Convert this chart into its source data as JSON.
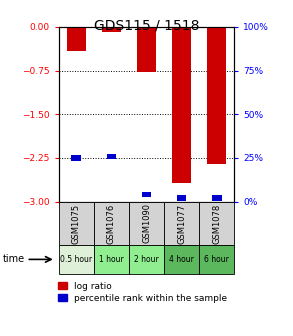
{
  "title": "GDS115 / 1518",
  "samples": [
    "GSM1075",
    "GSM1076",
    "GSM1090",
    "GSM1077",
    "GSM1078"
  ],
  "time_labels": [
    "0.5 hour",
    "1 hour",
    "2 hour",
    "4 hour",
    "6 hour"
  ],
  "time_colors": [
    "#dff0d8",
    "#90ee90",
    "#90ee90",
    "#5cb85c",
    "#5cb85c"
  ],
  "log_ratios": [
    -0.42,
    -0.08,
    -0.78,
    -2.68,
    -2.35
  ],
  "percentile_ranks": [
    25,
    26,
    4,
    2,
    2
  ],
  "ylim_left": [
    -3,
    0
  ],
  "ylim_right": [
    0,
    100
  ],
  "yticks_left": [
    0,
    -0.75,
    -1.5,
    -2.25,
    -3
  ],
  "yticks_right": [
    100,
    75,
    50,
    25,
    0
  ],
  "bar_color": "#cc0000",
  "pct_color": "#0000cc",
  "label_bg": "#d3d3d3",
  "legend_log": "log ratio",
  "legend_pct": "percentile rank within the sample"
}
